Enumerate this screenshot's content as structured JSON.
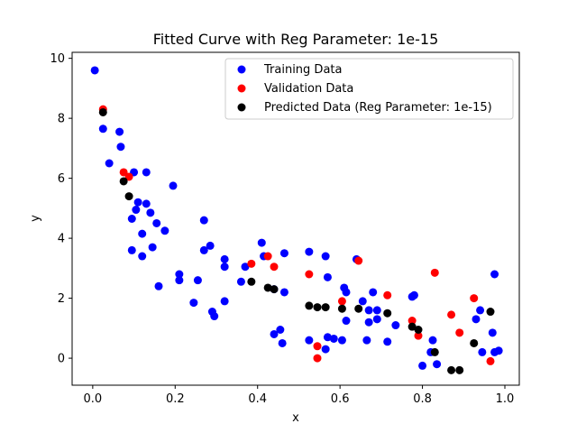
{
  "chart_data": {
    "type": "scatter",
    "title": "Fitted Curve with Reg Parameter: 1e-15",
    "xlabel": "x",
    "ylabel": "y",
    "xlim": [
      -0.05,
      1.035
    ],
    "ylim": [
      -0.9,
      10.2
    ],
    "xticks": [
      0.0,
      0.2,
      0.4,
      0.6,
      0.8,
      1.0
    ],
    "xtick_labels": [
      "0.0",
      "0.2",
      "0.4",
      "0.6",
      "0.8",
      "1.0"
    ],
    "yticks": [
      0,
      2,
      4,
      6,
      8,
      10
    ],
    "ytick_labels": [
      "0",
      "2",
      "4",
      "6",
      "8",
      "10"
    ],
    "grid": false,
    "legend_position": "top-right",
    "series": [
      {
        "name": "Training Data",
        "color": "#0000ff",
        "points": [
          [
            0.005,
            9.6
          ],
          [
            0.025,
            7.65
          ],
          [
            0.04,
            6.5
          ],
          [
            0.065,
            7.55
          ],
          [
            0.068,
            7.05
          ],
          [
            0.1,
            6.2
          ],
          [
            0.13,
            6.2
          ],
          [
            0.095,
            4.65
          ],
          [
            0.105,
            4.95
          ],
          [
            0.11,
            5.2
          ],
          [
            0.13,
            5.15
          ],
          [
            0.14,
            4.85
          ],
          [
            0.12,
            4.15
          ],
          [
            0.155,
            4.5
          ],
          [
            0.175,
            4.25
          ],
          [
            0.095,
            3.6
          ],
          [
            0.12,
            3.4
          ],
          [
            0.145,
            3.7
          ],
          [
            0.195,
            5.75
          ],
          [
            0.27,
            4.6
          ],
          [
            0.27,
            3.6
          ],
          [
            0.285,
            3.75
          ],
          [
            0.32,
            3.3
          ],
          [
            0.32,
            3.05
          ],
          [
            0.21,
            2.8
          ],
          [
            0.21,
            2.6
          ],
          [
            0.255,
            2.6
          ],
          [
            0.16,
            2.4
          ],
          [
            0.245,
            1.85
          ],
          [
            0.32,
            1.9
          ],
          [
            0.29,
            1.55
          ],
          [
            0.295,
            1.4
          ],
          [
            0.36,
            2.55
          ],
          [
            0.37,
            3.05
          ],
          [
            0.41,
            3.85
          ],
          [
            0.415,
            3.4
          ],
          [
            0.44,
            2.3
          ],
          [
            0.465,
            3.5
          ],
          [
            0.465,
            2.2
          ],
          [
            0.44,
            0.8
          ],
          [
            0.455,
            0.95
          ],
          [
            0.46,
            0.5
          ],
          [
            0.525,
            3.55
          ],
          [
            0.565,
            3.4
          ],
          [
            0.57,
            2.7
          ],
          [
            0.61,
            2.35
          ],
          [
            0.615,
            2.2
          ],
          [
            0.64,
            3.3
          ],
          [
            0.655,
            1.9
          ],
          [
            0.67,
            1.6
          ],
          [
            0.68,
            2.2
          ],
          [
            0.69,
            1.6
          ],
          [
            0.615,
            1.25
          ],
          [
            0.67,
            1.2
          ],
          [
            0.69,
            1.3
          ],
          [
            0.525,
            0.6
          ],
          [
            0.565,
            0.3
          ],
          [
            0.57,
            0.7
          ],
          [
            0.585,
            0.65
          ],
          [
            0.605,
            0.6
          ],
          [
            0.665,
            0.6
          ],
          [
            0.715,
            0.55
          ],
          [
            0.735,
            1.1
          ],
          [
            0.775,
            2.05
          ],
          [
            0.78,
            2.1
          ],
          [
            0.82,
            0.2
          ],
          [
            0.825,
            0.6
          ],
          [
            0.835,
            -0.2
          ],
          [
            0.8,
            -0.25
          ],
          [
            0.93,
            1.3
          ],
          [
            0.94,
            1.6
          ],
          [
            0.945,
            0.2
          ],
          [
            0.97,
            0.85
          ],
          [
            0.975,
            2.8
          ],
          [
            0.975,
            0.2
          ],
          [
            0.985,
            0.25
          ]
        ]
      },
      {
        "name": "Validation Data",
        "color": "#ff0000",
        "points": [
          [
            0.025,
            8.3
          ],
          [
            0.075,
            6.2
          ],
          [
            0.088,
            6.05
          ],
          [
            0.385,
            3.15
          ],
          [
            0.425,
            3.4
          ],
          [
            0.44,
            3.05
          ],
          [
            0.525,
            2.8
          ],
          [
            0.605,
            1.9
          ],
          [
            0.645,
            3.25
          ],
          [
            0.715,
            2.1
          ],
          [
            0.775,
            1.25
          ],
          [
            0.79,
            0.75
          ],
          [
            0.83,
            2.85
          ],
          [
            0.87,
            1.45
          ],
          [
            0.89,
            0.85
          ],
          [
            0.925,
            2.0
          ],
          [
            0.965,
            -0.1
          ],
          [
            0.545,
            0.4
          ],
          [
            0.545,
            0.0
          ]
        ]
      },
      {
        "name": "Predicted Data (Reg Parameter: 1e-15)",
        "color": "#000000",
        "points": [
          [
            0.025,
            8.2
          ],
          [
            0.075,
            5.9
          ],
          [
            0.088,
            5.4
          ],
          [
            0.385,
            2.55
          ],
          [
            0.425,
            2.35
          ],
          [
            0.44,
            2.3
          ],
          [
            0.525,
            1.75
          ],
          [
            0.545,
            1.7
          ],
          [
            0.565,
            1.7
          ],
          [
            0.605,
            1.65
          ],
          [
            0.645,
            1.65
          ],
          [
            0.715,
            1.5
          ],
          [
            0.775,
            1.05
          ],
          [
            0.79,
            0.95
          ],
          [
            0.83,
            0.2
          ],
          [
            0.87,
            -0.4
          ],
          [
            0.89,
            -0.4
          ],
          [
            0.925,
            0.5
          ],
          [
            0.965,
            1.55
          ]
        ]
      }
    ]
  }
}
